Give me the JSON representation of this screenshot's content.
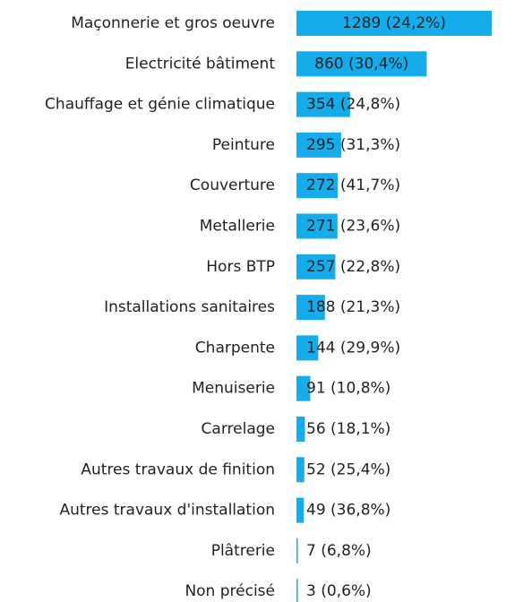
{
  "chart_data": {
    "type": "bar",
    "orientation": "horizontal",
    "color": "#14aceb",
    "categories": [
      "Maçonnerie et gros oeuvre",
      "Electricité bâtiment",
      "Chauffage et génie climatique",
      "Peinture",
      "Couverture",
      "Metallerie",
      "Hors BTP",
      "Installations sanitaires",
      "Charpente",
      "Menuiserie",
      "Carrelage",
      "Autres travaux de finition",
      "Autres travaux d'installation",
      "Plâtrerie",
      "Non précisé"
    ],
    "values": [
      1289,
      860,
      354,
      295,
      272,
      271,
      257,
      188,
      144,
      91,
      56,
      52,
      49,
      7,
      3
    ],
    "value_labels": [
      "1289 (24,2%)",
      "860 (30,4%)",
      "354 (24,8%)",
      "295 (31,3%)",
      "272 (41,7%)",
      "271 (23,6%)",
      "257 (22,8%)",
      "188 (21,3%)",
      "144 (29,9%)",
      "91 (10,8%)",
      "56 (18,1%)",
      "52 (25,4%)",
      "49 (36,8%)",
      "7 (6,8%)",
      "3 (0,6%)"
    ],
    "xlim": [
      0,
      1289
    ]
  }
}
